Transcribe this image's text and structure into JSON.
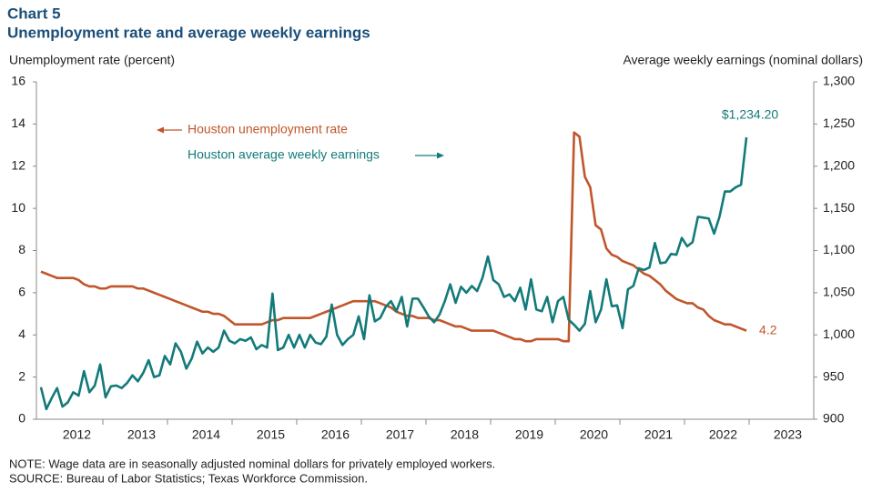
{
  "chart_data": {
    "type": "line",
    "title": "Chart 5",
    "subtitle": "Unemployment rate and average weekly earnings",
    "y_axis_label": "Unemployment  rate (percent)",
    "y2_axis_label": "Average weekly earnings (nominal dollars)",
    "note": "NOTE: Wage data are in seasonally adjusted nominal dollars for privately employed workers.",
    "source": "SOURCE: Bureau of Labor Statistics; Texas Workforce Commission.",
    "annotations": [
      "Houston unemployment  rate",
      "Houston average weekly earnings"
    ],
    "categories": [
      null,
      null,
      null,
      null,
      null,
      null,
      "2012",
      null,
      null,
      null,
      null,
      null,
      null,
      null,
      null,
      null,
      null,
      null,
      "2013",
      null,
      null,
      null,
      null,
      null,
      null,
      null,
      null,
      null,
      null,
      null,
      "2014",
      null,
      null,
      null,
      null,
      null,
      null,
      null,
      null,
      null,
      null,
      null,
      "2015",
      null,
      null,
      null,
      null,
      null,
      null,
      null,
      null,
      null,
      null,
      null,
      "2016",
      null,
      null,
      null,
      null,
      null,
      null,
      null,
      null,
      null,
      null,
      null,
      "2017",
      null,
      null,
      null,
      null,
      null,
      null,
      null,
      null,
      null,
      null,
      null,
      "2018",
      null,
      null,
      null,
      null,
      null,
      null,
      null,
      null,
      null,
      null,
      null,
      "2019",
      null,
      null,
      null,
      null,
      null,
      null,
      null,
      null,
      null,
      null,
      null,
      "2020",
      null,
      null,
      null,
      null,
      null,
      null,
      null,
      null,
      null,
      null,
      null,
      "2021",
      null,
      null,
      null,
      null,
      null,
      null,
      null,
      null,
      null,
      null,
      null,
      "2022",
      null,
      null,
      null,
      null,
      null,
      null,
      null,
      null,
      null,
      null,
      null,
      "2023",
      null,
      null,
      null,
      null,
      null
    ],
    "series": [
      {
        "name": "Houston unemployment  rate",
        "color": "#c0562a",
        "values": [
          7.0,
          6.9,
          6.8,
          6.7,
          6.7,
          6.7,
          6.7,
          6.6,
          6.4,
          6.3,
          6.3,
          6.2,
          6.2,
          6.3,
          6.3,
          6.3,
          6.3,
          6.3,
          6.2,
          6.2,
          6.1,
          6.0,
          5.9,
          5.8,
          5.7,
          5.6,
          5.5,
          5.4,
          5.3,
          5.2,
          5.1,
          5.1,
          5.0,
          5.0,
          4.9,
          4.7,
          4.5,
          4.5,
          4.5,
          4.5,
          4.5,
          4.5,
          4.6,
          4.7,
          4.7,
          4.8,
          4.8,
          4.8,
          4.8,
          4.8,
          4.8,
          4.9,
          5.0,
          5.1,
          5.2,
          5.3,
          5.4,
          5.5,
          5.6,
          5.6,
          5.6,
          5.6,
          5.6,
          5.5,
          5.4,
          5.3,
          5.1,
          5.0,
          4.9,
          4.9,
          4.8,
          4.8,
          4.8,
          4.7,
          4.7,
          4.6,
          4.5,
          4.4,
          4.4,
          4.3,
          4.2,
          4.2,
          4.2,
          4.2,
          4.2,
          4.1,
          4.0,
          3.9,
          3.8,
          3.8,
          3.7,
          3.7,
          3.8,
          3.8,
          3.8,
          3.8,
          3.8,
          3.7,
          3.7,
          13.6,
          13.4,
          11.5,
          11.0,
          9.2,
          9.0,
          8.1,
          7.8,
          7.7,
          7.5,
          7.4,
          7.3,
          7.1,
          6.9,
          6.8,
          6.6,
          6.4,
          6.1,
          5.9,
          5.7,
          5.6,
          5.5,
          5.5,
          5.3,
          5.2,
          4.9,
          4.7,
          4.6,
          4.5,
          4.5,
          4.4,
          4.3,
          4.2,
          null,
          null,
          null,
          null,
          null,
          null,
          null,
          null,
          null,
          null,
          null,
          null
        ],
        "value_labels": [
          null,
          null,
          null,
          null,
          null,
          null,
          null,
          null,
          null,
          null,
          null,
          null,
          null,
          null,
          null,
          null,
          null,
          null,
          null,
          null,
          null,
          null,
          null,
          null,
          null,
          null,
          null,
          null,
          null,
          null,
          null,
          null,
          null,
          null,
          null,
          null,
          null,
          null,
          null,
          null,
          null,
          null,
          null,
          null,
          null,
          null,
          null,
          null,
          null,
          null,
          null,
          null,
          null,
          null,
          null,
          null,
          null,
          null,
          null,
          null,
          null,
          null,
          null,
          null,
          null,
          null,
          null,
          null,
          null,
          null,
          null,
          null,
          null,
          null,
          null,
          null,
          null,
          null,
          null,
          null,
          null,
          null,
          null,
          null,
          null,
          null,
          null,
          null,
          null,
          null,
          null,
          null,
          null,
          null,
          null,
          null,
          null,
          null,
          null,
          null,
          null,
          null,
          null,
          null,
          null,
          null,
          null,
          null,
          null,
          null,
          null,
          null,
          null,
          null,
          null,
          null,
          null,
          null,
          null,
          null,
          null,
          null,
          null,
          null,
          null,
          null,
          null,
          null,
          null,
          null,
          null,
          "4.2",
          null,
          null,
          null,
          null,
          null,
          null,
          null,
          null,
          null,
          null,
          null,
          null
        ]
      },
      {
        "name": "Houston average weekly earnings",
        "color": "#137a7a",
        "axis": "y2",
        "values": [
          938,
          912,
          925,
          937,
          915,
          920,
          932,
          928,
          957,
          932,
          940,
          965,
          926,
          939,
          940,
          937,
          943,
          952,
          945,
          955,
          970,
          950,
          952,
          975,
          965,
          990,
          980,
          960,
          972,
          992,
          978,
          985,
          980,
          985,
          1005,
          993,
          990,
          995,
          993,
          997,
          983,
          988,
          985,
          1049,
          982,
          985,
          1000,
          985,
          1000,
          985,
          1000,
          991,
          989,
          998,
          1036,
          1000,
          988,
          995,
          1000,
          1022,
          995,
          1047,
          1016,
          1020,
          1033,
          1040,
          1028,
          1045,
          1010,
          1043,
          1043,
          1033,
          1022,
          1015,
          1024,
          1040,
          1060,
          1038,
          1057,
          1050,
          1058,
          1052,
          1068,
          1093,
          1065,
          1060,
          1045,
          1048,
          1040,
          1056,
          1030,
          1066,
          1030,
          1028,
          1045,
          1015,
          1040,
          1045,
          1018,
          1012,
          1005,
          1013,
          1052,
          1015,
          1030,
          1066,
          1034,
          1035,
          1008,
          1054,
          1058,
          1079,
          1077,
          1080,
          1109,
          1085,
          1086,
          1096,
          1095,
          1115,
          1105,
          1110,
          1140,
          1139,
          1138,
          1120,
          1140,
          1170,
          1170,
          1175,
          1178,
          1234.2,
          null,
          null,
          null,
          null,
          null,
          null,
          null,
          null,
          null,
          null,
          null,
          null
        ],
        "value_labels": [
          null,
          null,
          null,
          null,
          null,
          null,
          null,
          null,
          null,
          null,
          null,
          null,
          null,
          null,
          null,
          null,
          null,
          null,
          null,
          null,
          null,
          null,
          null,
          null,
          null,
          null,
          null,
          null,
          null,
          null,
          null,
          null,
          null,
          null,
          null,
          null,
          null,
          null,
          null,
          null,
          null,
          null,
          null,
          null,
          null,
          null,
          null,
          null,
          null,
          null,
          null,
          null,
          null,
          null,
          null,
          null,
          null,
          null,
          null,
          null,
          null,
          null,
          null,
          null,
          null,
          null,
          null,
          null,
          null,
          null,
          null,
          null,
          null,
          null,
          null,
          null,
          null,
          null,
          null,
          null,
          null,
          null,
          null,
          null,
          null,
          null,
          null,
          null,
          null,
          null,
          null,
          null,
          null,
          null,
          null,
          null,
          null,
          null,
          null,
          null,
          null,
          null,
          null,
          null,
          null,
          null,
          null,
          null,
          null,
          null,
          null,
          null,
          null,
          null,
          null,
          null,
          null,
          null,
          null,
          null,
          null,
          null,
          null,
          null,
          null,
          null,
          null,
          null,
          null,
          null,
          null,
          "$1,234.20",
          null,
          null,
          null,
          null,
          null,
          null,
          null,
          null,
          null,
          null,
          null,
          null
        ]
      }
    ],
    "ylim": [
      0,
      16
    ],
    "yticks": [
      0,
      2,
      4,
      6,
      8,
      10,
      12,
      14,
      16
    ],
    "y2lim": [
      900,
      1300
    ],
    "y2ticks": [
      900,
      950,
      {
        "value": 1000,
        "label": "1,000"
      },
      {
        "value": 1050,
        "label": "1,050"
      },
      {
        "value": 1100,
        "label": "1,100"
      },
      {
        "value": 1150,
        "label": "1,150"
      },
      {
        "value": 1200,
        "label": "1,200"
      },
      {
        "value": 1250,
        "label": "1,250"
      },
      {
        "value": 1300,
        "label": "1,300"
      }
    ],
    "grid": false
  }
}
